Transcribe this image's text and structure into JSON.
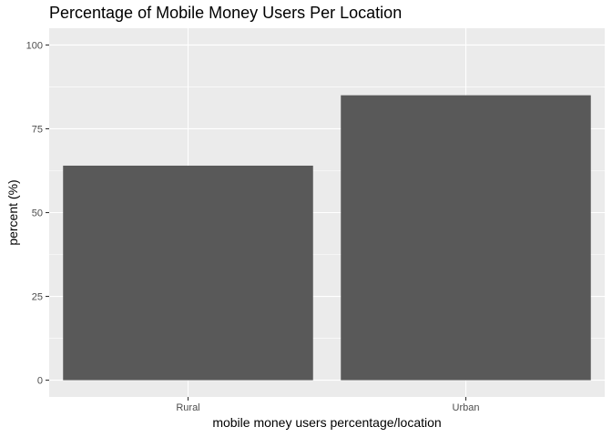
{
  "chart_data": {
    "type": "bar",
    "title": "Percentage of Mobile Money Users Per Location",
    "xlabel": "mobile money users percentage/location",
    "ylabel": "percent (%)",
    "categories": [
      "Rural",
      "Urban"
    ],
    "values": [
      64,
      85
    ],
    "ylim": [
      -5,
      105
    ],
    "yticks": [
      0,
      25,
      50,
      75,
      100
    ],
    "ytick_labels": [
      "0",
      "25",
      "50",
      "75",
      "100"
    ],
    "grid": true,
    "legend": "none"
  },
  "colors": {
    "panel_background": "#ebebeb",
    "grid_major": "#ffffff",
    "bar_fill": "#595959",
    "tick_mark": "#333333",
    "tick_text": "#4d4d4d"
  }
}
